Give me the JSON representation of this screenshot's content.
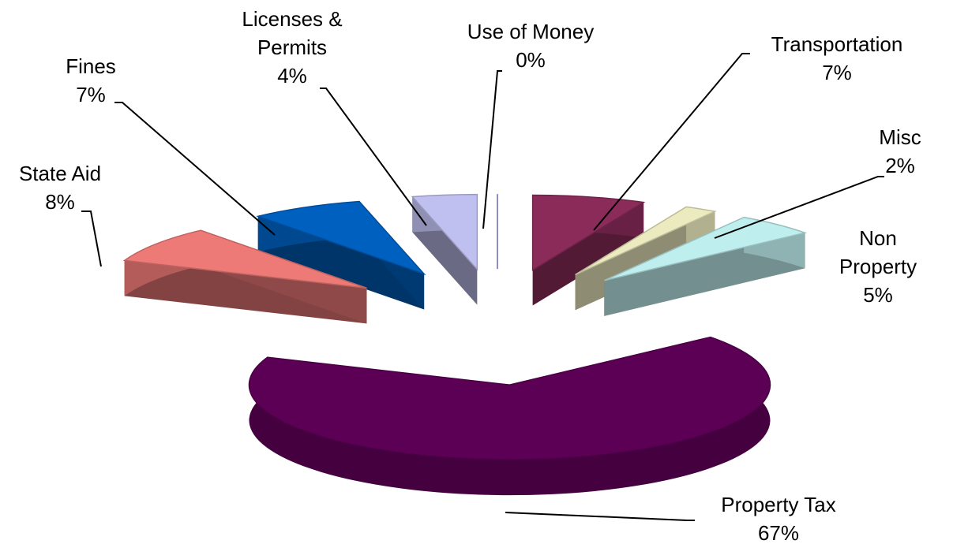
{
  "chart_data": {
    "type": "pie3d",
    "categories": [
      "Use of Money",
      "Transportation",
      "Misc",
      "Non Property",
      "Property Tax",
      "State Aid",
      "Fines",
      "Licenses & Permits"
    ],
    "values": [
      0,
      7,
      2,
      5,
      67,
      8,
      7,
      4
    ],
    "value_labels": [
      "0%",
      "7%",
      "2%",
      "5%",
      "67%",
      "8%",
      "7%",
      "4%"
    ],
    "colors": [
      "#8080e0",
      "#8b2b5a",
      "#ecebbf",
      "#bfeeee",
      "#5c0055",
      "#ee7a78",
      "#0060c0",
      "#c0c0f0"
    ]
  }
}
